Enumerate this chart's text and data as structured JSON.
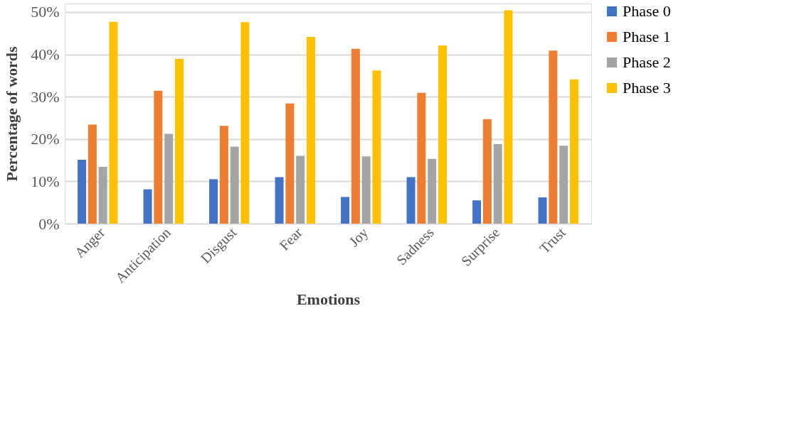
{
  "chart_data": {
    "type": "bar",
    "xlabel": "Emotions",
    "ylabel": "Percentage of words",
    "categories": [
      "Anger",
      "Anticipation",
      "Disgust",
      "Fear",
      "Joy",
      "Sadness",
      "Surprise",
      "Trust"
    ],
    "series": [
      {
        "name": "Phase 0",
        "color": "#4472c4",
        "values": [
          15.1,
          8.1,
          10.5,
          11.0,
          6.3,
          11.0,
          5.5,
          6.2
        ]
      },
      {
        "name": "Phase 1",
        "color": "#ed7d31",
        "values": [
          23.4,
          31.4,
          23.1,
          28.4,
          41.3,
          30.9,
          24.7,
          40.9
        ]
      },
      {
        "name": "Phase 2",
        "color": "#a5a5a5",
        "values": [
          13.4,
          21.2,
          18.2,
          16.0,
          15.9,
          15.3,
          18.8,
          18.4
        ]
      },
      {
        "name": "Phase 3",
        "color": "#ffc000",
        "values": [
          47.7,
          38.9,
          47.6,
          44.1,
          36.2,
          42.1,
          50.4,
          34.1
        ]
      }
    ],
    "ylim": [
      0,
      52
    ],
    "yticks": [
      {
        "value": 0,
        "label": "0%"
      },
      {
        "value": 10,
        "label": "10%"
      },
      {
        "value": 20,
        "label": "20%"
      },
      {
        "value": 30,
        "label": "30%"
      },
      {
        "value": 40,
        "label": "40%"
      },
      {
        "value": 50,
        "label": "50%"
      }
    ],
    "grid": "y",
    "legend": "right"
  }
}
